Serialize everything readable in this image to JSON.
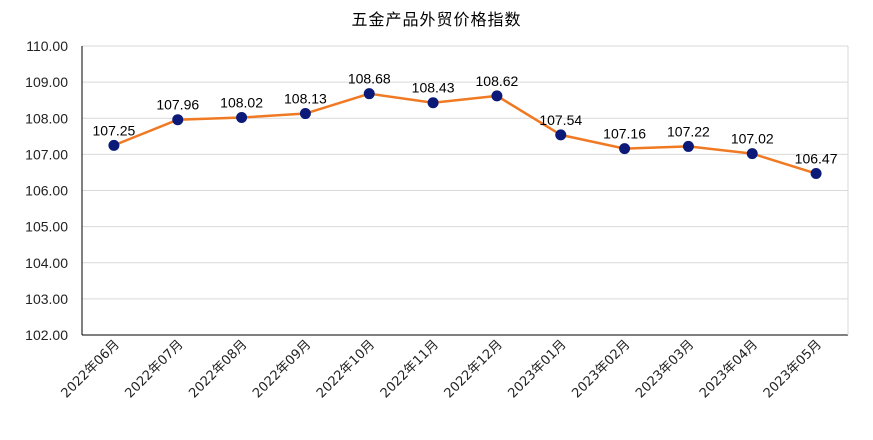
{
  "chart_data": {
    "type": "line",
    "title": "五金产品外贸价格指数",
    "xlabel": "",
    "ylabel": "",
    "categories": [
      "2022年06月",
      "2022年07月",
      "2022年08月",
      "2022年09月",
      "2022年10月",
      "2022年11月",
      "2022年12月",
      "2023年01月",
      "2023年02月",
      "2023年03月",
      "2023年04月",
      "2023年05月"
    ],
    "series": [
      {
        "values": [
          107.25,
          107.96,
          108.02,
          108.13,
          108.68,
          108.43,
          108.62,
          107.54,
          107.16,
          107.22,
          107.02,
          106.47
        ]
      }
    ],
    "ylim": [
      102.0,
      110.0
    ],
    "yticks": [
      "102.00",
      "103.00",
      "104.00",
      "105.00",
      "106.00",
      "107.00",
      "108.00",
      "109.00",
      "110.00"
    ],
    "grid": true,
    "legend": "none",
    "colors": {
      "line": "#f07a23",
      "marker": "#0b1a78",
      "grid": "#d9d9d9",
      "axis": "#000000"
    }
  }
}
